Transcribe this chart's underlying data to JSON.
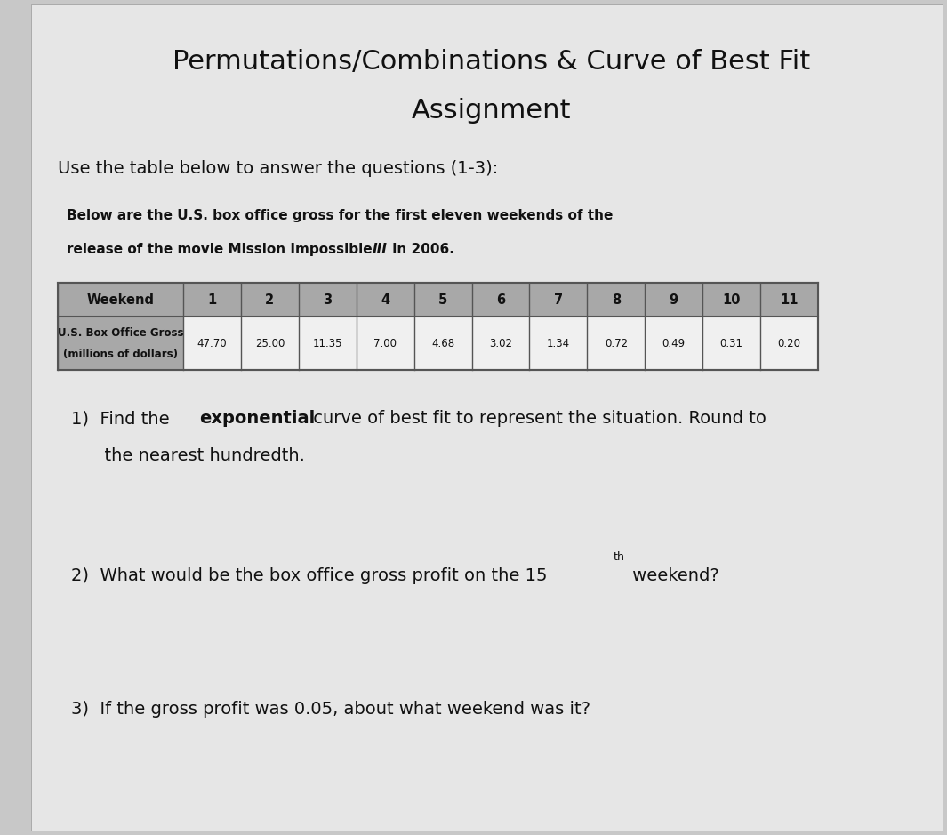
{
  "title_line1": "Permutations/Combinations & Curve of Best Fit",
  "title_line2": "Assignment",
  "intro_text": "Use the table below to answer the questions (1-3):",
  "table_desc_line1": "Below are the U.S. box office gross for the first eleven weekends of the",
  "table_desc_line2_before_italic": "release of the movie Mission Impossible ",
  "table_desc_italic": "III",
  "table_desc_after_italic": " in 2006.",
  "weekends": [
    1,
    2,
    3,
    4,
    5,
    6,
    7,
    8,
    9,
    10,
    11
  ],
  "gross": [
    47.7,
    25.0,
    11.35,
    7.0,
    4.68,
    3.02,
    1.34,
    0.72,
    0.49,
    0.31,
    0.2
  ],
  "row_header1": "Weekend",
  "row_header2_line1": "U.S. Box Office Gross",
  "row_header2_line2": "(millions of dollars)",
  "q1_pre": "1)  Find the ",
  "q1_bold": "exponential",
  "q1_post": " curve of best fit to represent the situation. Round to",
  "q1_line2": "      the nearest hundredth.",
  "q2_pre": "2)  What would be the box office gross profit on the 15",
  "q2_sup": "th",
  "q2_post": " weekend?",
  "q3": "3)  If the gross profit was 0.05, about what weekend was it?",
  "bg_color": "#c8c8c8",
  "paper_color": "#e6e6e6",
  "table_gray": "#a8a8a8",
  "table_white": "#f0f0f0",
  "border_color": "#555555",
  "font_color": "#111111",
  "desc_font_size": 11,
  "title_font_size": 22,
  "intro_font_size": 14,
  "q_font_size": 14
}
